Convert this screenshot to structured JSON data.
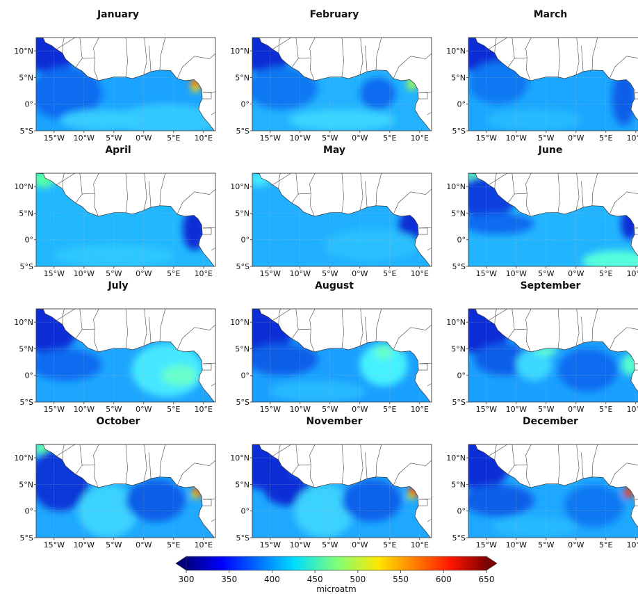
{
  "figure": {
    "panels": [
      {
        "month": "January"
      },
      {
        "month": "February"
      },
      {
        "month": "March"
      },
      {
        "month": "April"
      },
      {
        "month": "May"
      },
      {
        "month": "June"
      },
      {
        "month": "July"
      },
      {
        "month": "August"
      },
      {
        "month": "September"
      },
      {
        "month": "October"
      },
      {
        "month": "November"
      },
      {
        "month": "December"
      }
    ],
    "lat_ticks": [
      "10°N",
      "5°N",
      "0°",
      "5°S"
    ],
    "lon_ticks": [
      "15°W",
      "10°W",
      "5°W",
      "0°W",
      "5°E",
      "10°E"
    ],
    "colorbar": {
      "ticks": [
        "300",
        "350",
        "400",
        "450",
        "500",
        "550",
        "600",
        "650"
      ],
      "label": "microatm",
      "range": [
        300,
        650
      ],
      "extend": "both",
      "colormap": "jet"
    }
  }
}
